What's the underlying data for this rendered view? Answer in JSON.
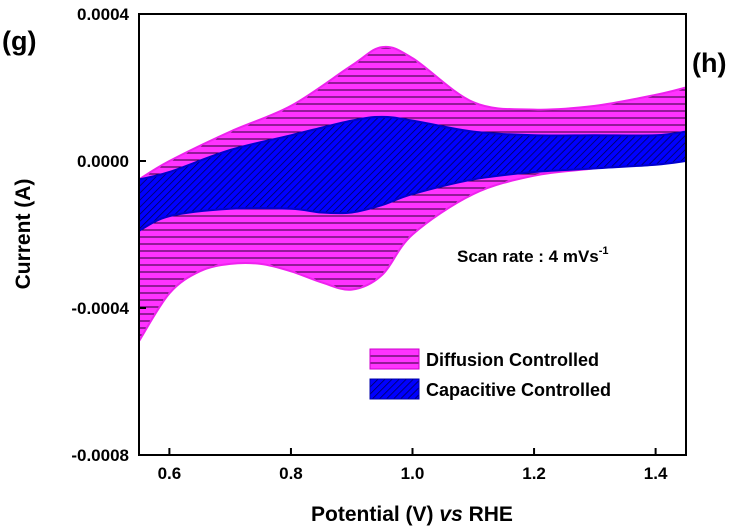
{
  "panel_labels": {
    "left": "(g)",
    "right": "(h)"
  },
  "chart_data": {
    "type": "area",
    "xlabel_main": "Potential (V) ",
    "xlabel_italic": "vs",
    "xlabel_tail": " RHE",
    "ylabel": "Current (A)",
    "xlim": [
      0.55,
      1.45
    ],
    "ylim": [
      -0.0008,
      0.0004
    ],
    "x_ticks": [
      0.6,
      0.8,
      1.0,
      1.2,
      1.4
    ],
    "x_tick_labels": [
      "0.6",
      "0.8",
      "1.0",
      "1.2",
      "1.4"
    ],
    "y_ticks": [
      0.0004,
      0.0,
      -0.0004,
      -0.0008
    ],
    "y_tick_labels": [
      "0.0004",
      "0.0000",
      "-0.0004",
      "-0.0008"
    ],
    "annotation": {
      "prefix": "Scan rate :  4 mVs",
      "superscript": "-1"
    },
    "series": [
      {
        "name": "Diffusion Controlled",
        "color": "#ff33ff",
        "upper": {
          "x": [
            0.55,
            0.6,
            0.7,
            0.8,
            0.9,
            0.95,
            1.0,
            1.1,
            1.2,
            1.3,
            1.4,
            1.45
          ],
          "y": [
            -5e-05,
            0.0,
            8e-05,
            0.00015,
            0.00026,
            0.00031,
            0.00028,
            0.00016,
            0.00014,
            0.00015,
            0.00018,
            0.0002
          ]
        },
        "lower": {
          "x": [
            0.55,
            0.6,
            0.65,
            0.7,
            0.75,
            0.8,
            0.85,
            0.9,
            0.95,
            1.0,
            1.1,
            1.2,
            1.3,
            1.4,
            1.45
          ],
          "y": [
            -0.00049,
            -0.00036,
            -0.0003,
            -0.00028,
            -0.00028,
            -0.0003,
            -0.00033,
            -0.00035,
            -0.00031,
            -0.0002,
            -9e-05,
            -4e-05,
            -2e-05,
            0.0,
            1e-05
          ]
        }
      },
      {
        "name": "Capacitive Controlled",
        "color": "#0000ff",
        "upper": {
          "x": [
            0.55,
            0.6,
            0.7,
            0.8,
            0.9,
            0.95,
            1.0,
            1.1,
            1.2,
            1.3,
            1.4,
            1.45
          ],
          "y": [
            -5e-05,
            -3e-05,
            3e-05,
            7e-05,
            0.00011,
            0.00012,
            0.00011,
            8e-05,
            7e-05,
            7e-05,
            7e-05,
            8e-05
          ]
        },
        "lower": {
          "x": [
            0.55,
            0.6,
            0.7,
            0.8,
            0.85,
            0.9,
            0.95,
            1.0,
            1.1,
            1.2,
            1.3,
            1.4,
            1.45
          ],
          "y": [
            -0.00019,
            -0.00015,
            -0.00013,
            -0.00013,
            -0.00014,
            -0.00014,
            -0.00012,
            -9e-05,
            -5e-05,
            -3e-05,
            -2e-05,
            -1e-05,
            0.0
          ]
        }
      }
    ],
    "legend_position": "bottom-right",
    "grid": false
  }
}
